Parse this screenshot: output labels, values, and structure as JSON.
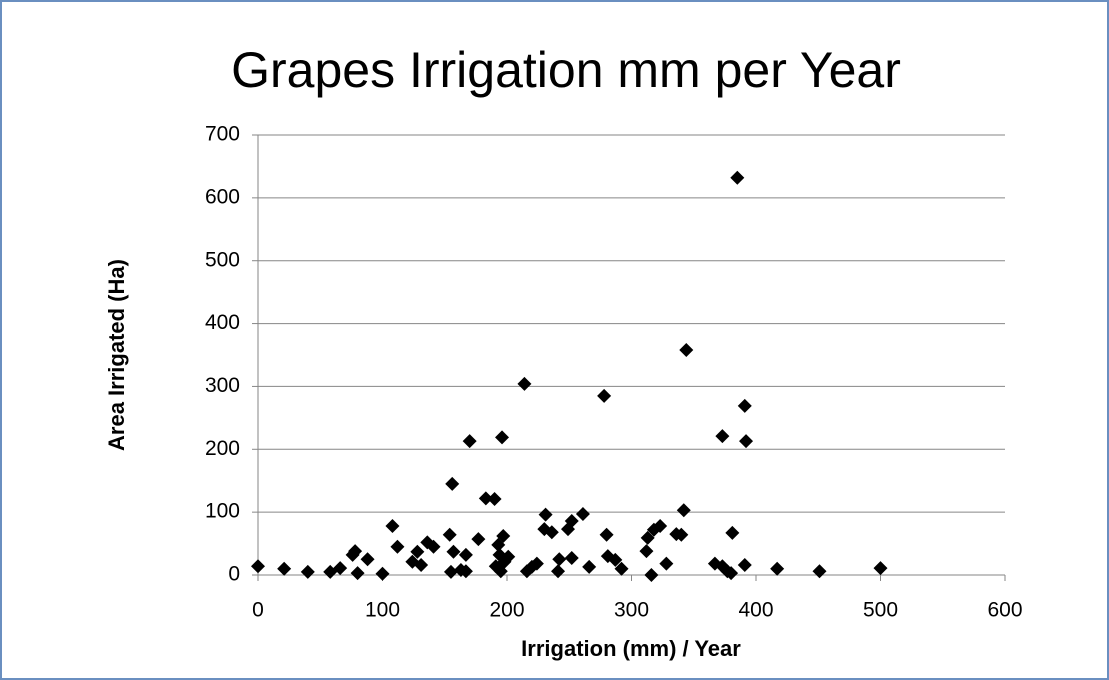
{
  "chart_data": {
    "type": "scatter",
    "title": "Grapes Irrigation mm per Year",
    "x_label": "Irrigation (mm) / Year",
    "y_label": "Area Irrigated (Ha)",
    "color": "#000000",
    "grid": true,
    "xlim": [
      0,
      600
    ],
    "xticks": [
      0,
      100,
      200,
      300,
      400,
      500,
      600
    ],
    "ylim": [
      0,
      700
    ],
    "yticks": [
      0,
      100,
      200,
      300,
      400,
      500,
      600,
      700
    ],
    "x": [
      0,
      21,
      40,
      58,
      66,
      76,
      78,
      80,
      88,
      100,
      108,
      112,
      124,
      128,
      131,
      136,
      141,
      154,
      156,
      155,
      157,
      163,
      167,
      167,
      170,
      177,
      183,
      190,
      191,
      193,
      194,
      195,
      196,
      197,
      198,
      201,
      214,
      216,
      220,
      224,
      231,
      230,
      236,
      241,
      242,
      249,
      252,
      252,
      261,
      266,
      278,
      280,
      281,
      287,
      292,
      312,
      313,
      318,
      316,
      323,
      328,
      336,
      340,
      342,
      344,
      367,
      373,
      373,
      377,
      381,
      380,
      385,
      391,
      391,
      392,
      417,
      451,
      500
    ],
    "values": [
      14,
      10,
      5,
      5,
      11,
      32,
      38,
      3,
      25,
      2,
      78,
      45,
      21,
      37,
      16,
      52,
      45,
      64,
      145,
      5,
      37,
      8,
      32,
      6,
      213,
      57,
      122,
      121,
      14,
      48,
      32,
      6,
      219,
      62,
      21,
      29,
      304,
      6,
      13,
      18,
      96,
      73,
      68,
      6,
      25,
      73,
      86,
      27,
      97,
      13,
      285,
      64,
      30,
      24,
      10,
      38,
      59,
      72,
      0,
      78,
      18,
      65,
      64,
      103,
      358,
      18,
      14,
      221,
      6,
      67,
      3,
      632,
      16,
      269,
      213,
      10,
      6,
      11
    ]
  }
}
